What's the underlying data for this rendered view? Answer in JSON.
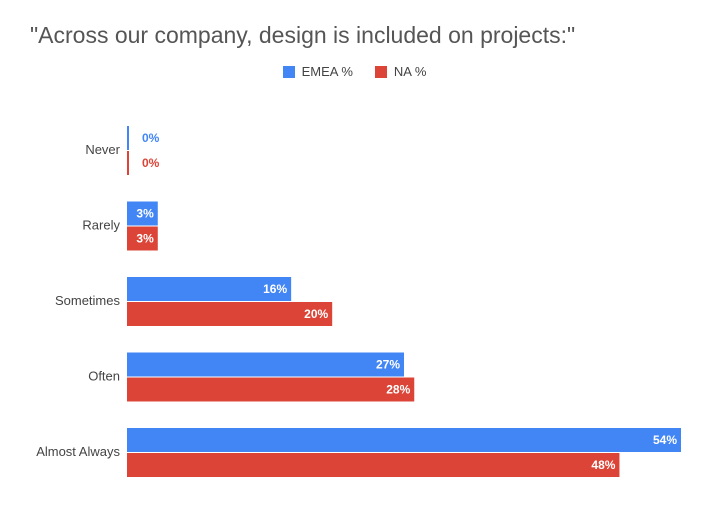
{
  "chart_data": {
    "type": "bar",
    "orientation": "horizontal",
    "title": "\"Across our company, design is included on projects:\"",
    "categories": [
      "Never",
      "Rarely",
      "Sometimes",
      "Often",
      "Almost Always"
    ],
    "series": [
      {
        "name": "EMEA %",
        "color": "#4285f4",
        "values": [
          0,
          3,
          16,
          27,
          54
        ],
        "labels": [
          "0%",
          "3%",
          "16%",
          "27%",
          "54%"
        ]
      },
      {
        "name": "NA %",
        "color": "#db4437",
        "values": [
          0,
          3,
          20,
          28,
          48
        ],
        "labels": [
          "0%",
          "3%",
          "20%",
          "28%",
          "48%"
        ]
      }
    ],
    "xlim": [
      0,
      54
    ],
    "legend_position": "top-center",
    "grid": false
  }
}
